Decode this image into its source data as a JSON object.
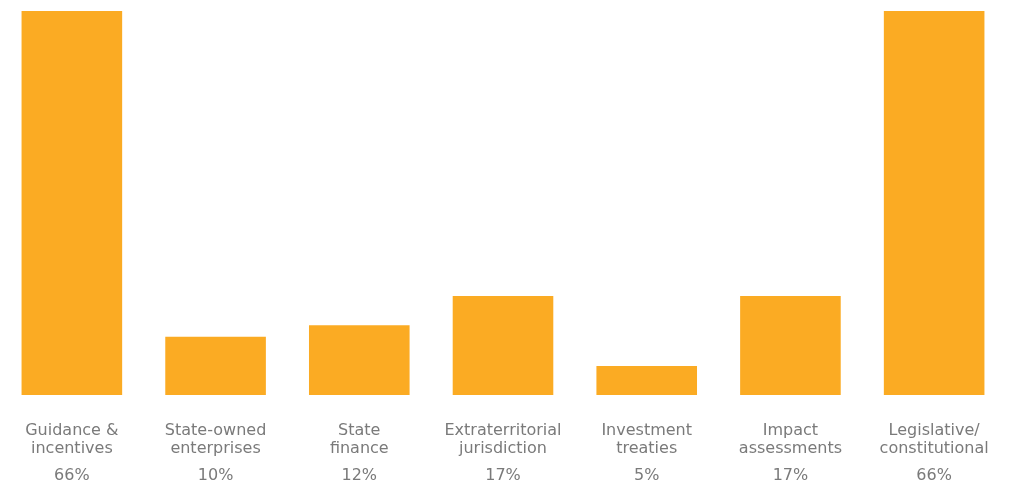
{
  "chart_data": {
    "type": "bar",
    "categories": [
      "Guidance & incentives",
      "State-owned enterprises",
      "State finance",
      "Extraterritorial jurisdiction",
      "Investment treaties",
      "Impact assessments",
      "Legislative/constitutional"
    ],
    "values": [
      66,
      10,
      12,
      17,
      5,
      17,
      66
    ],
    "value_labels": [
      "66%",
      "10%",
      "12%",
      "17%",
      "5%",
      "17%",
      "66%"
    ],
    "color": "#fbab23"
  }
}
